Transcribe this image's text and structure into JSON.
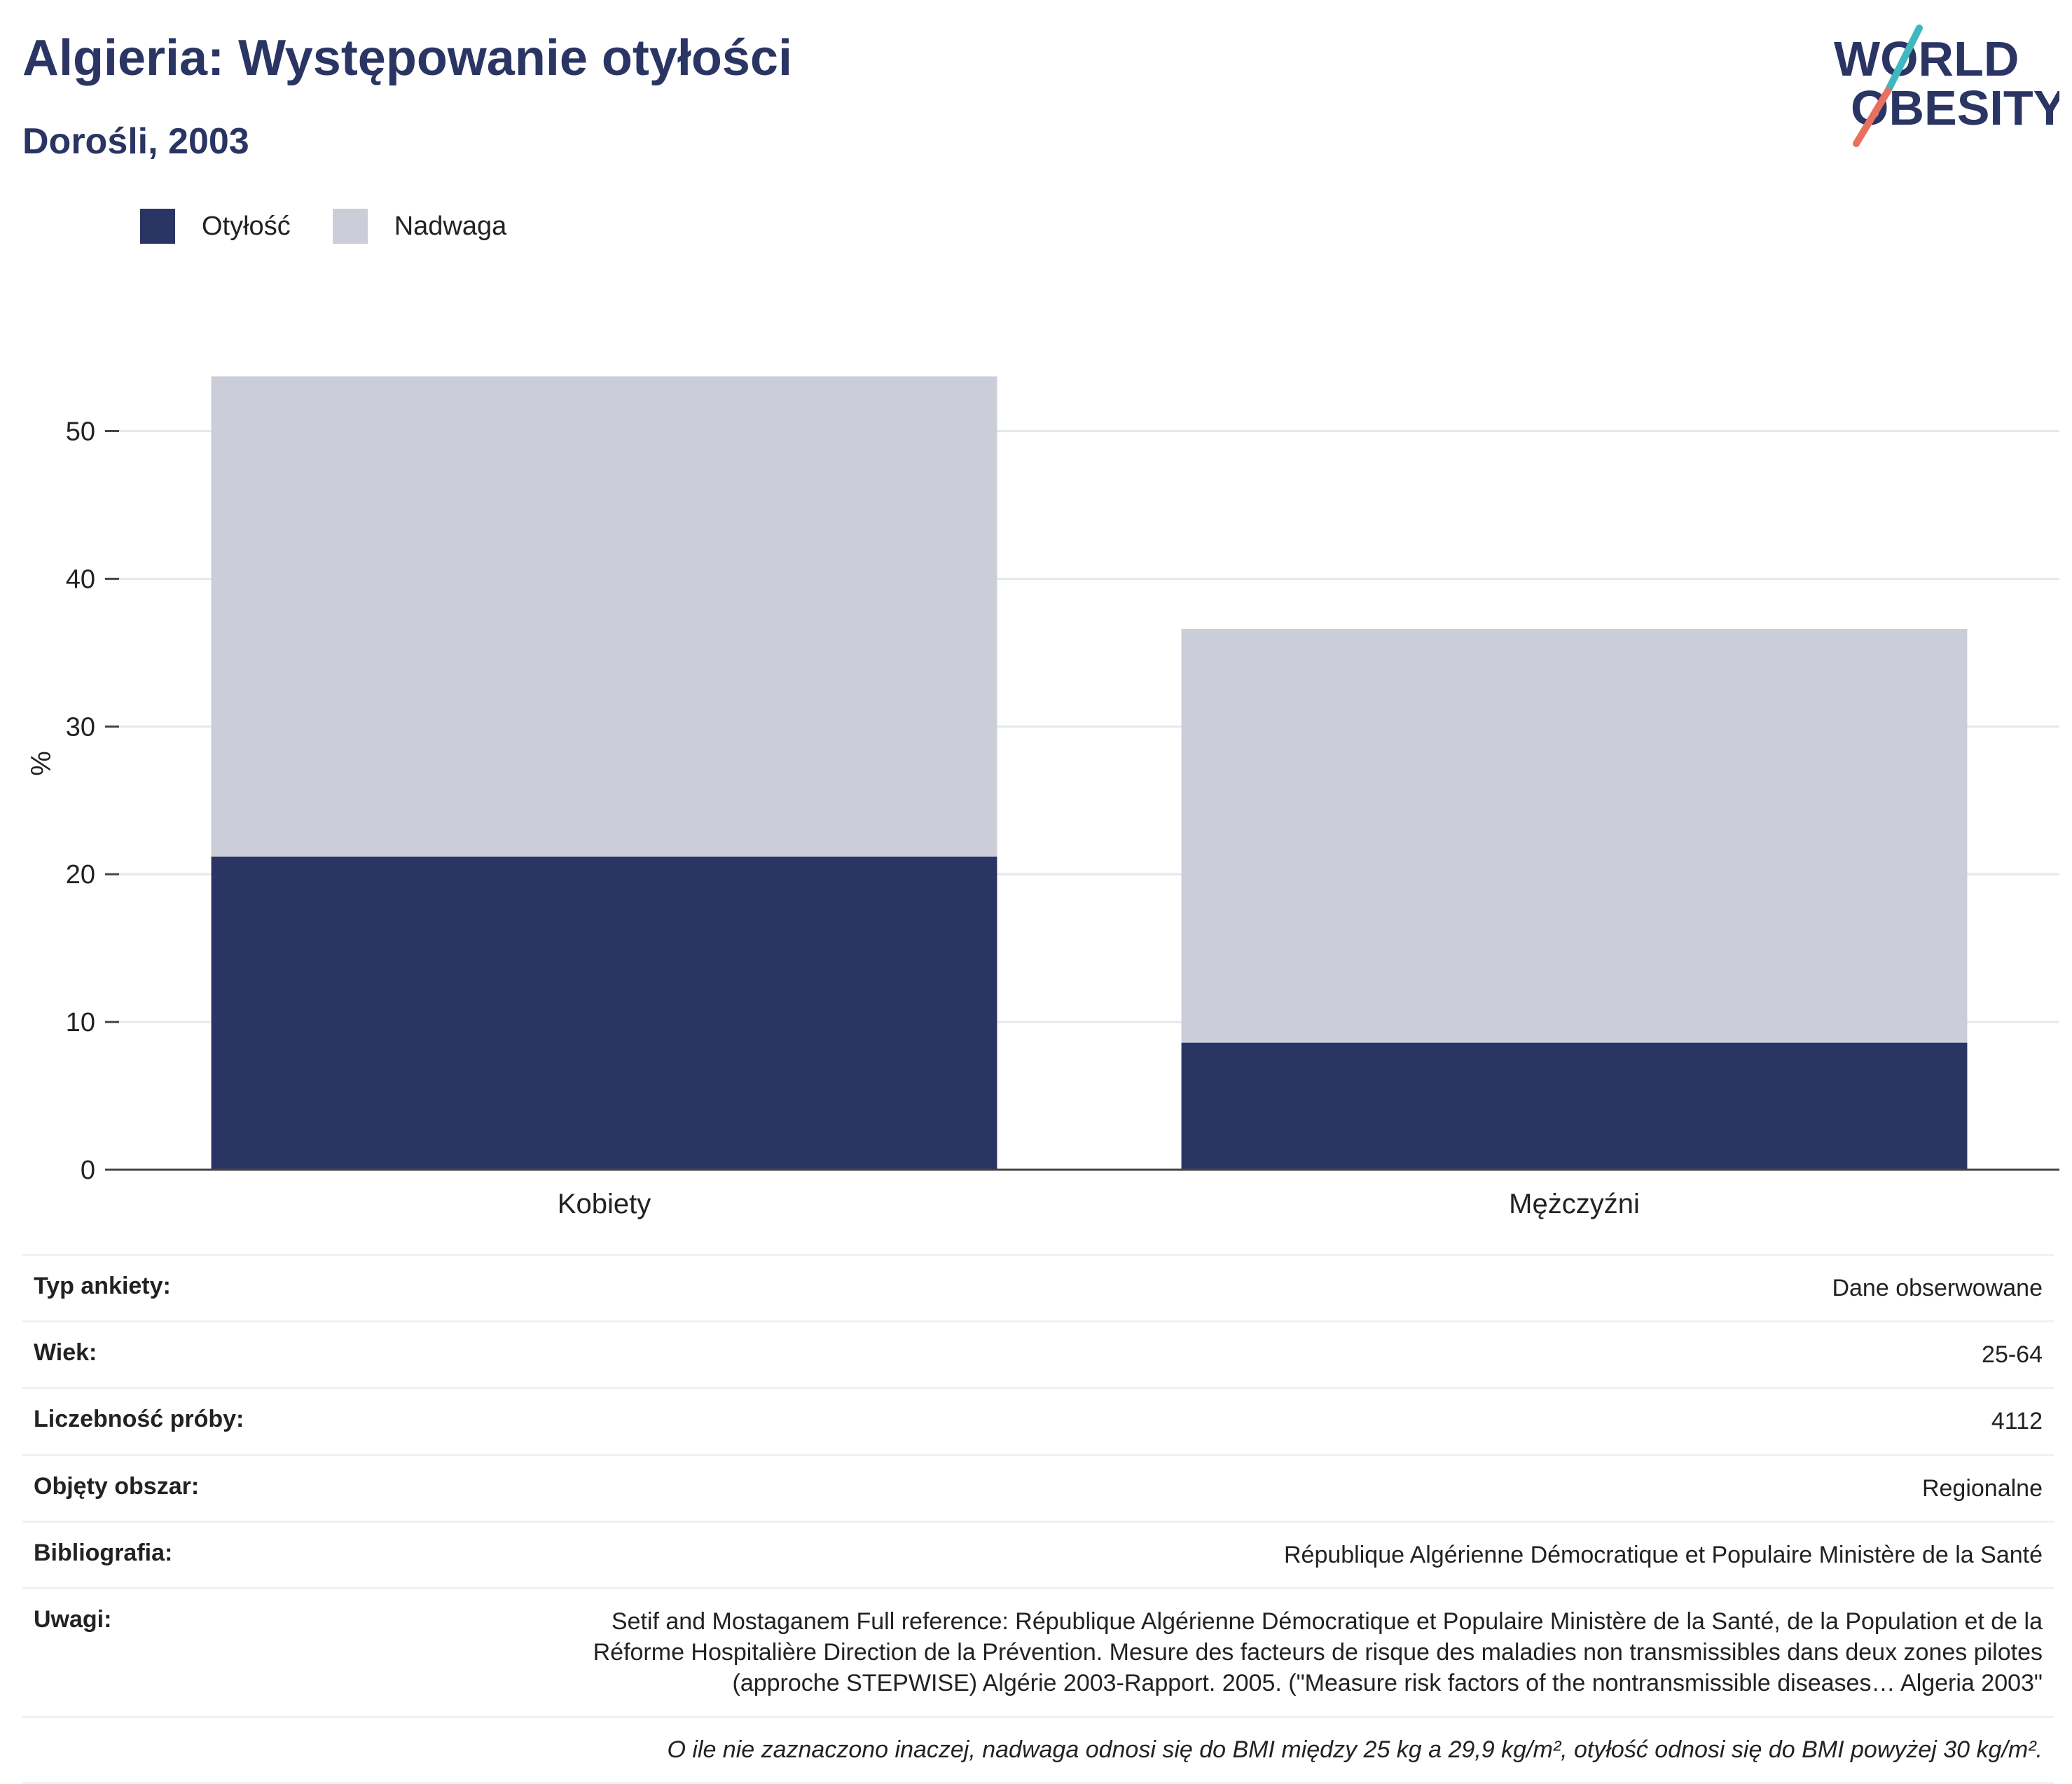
{
  "header": {
    "title": "Algieria: Występowanie otyłości",
    "subtitle": "Dorośli, 2003"
  },
  "logo": {
    "line1": "WORLD",
    "line2": "OBESITY",
    "colors": {
      "text": "#2a3563",
      "slash_top": "#3fb8c0",
      "slash_bottom": "#e8705f"
    }
  },
  "legend": [
    {
      "label": "Otyłość",
      "color": "#2a3563"
    },
    {
      "label": "Nadwaga",
      "color": "#cbcdd8"
    }
  ],
  "chart_data": {
    "type": "bar",
    "stacked": true,
    "categories": [
      "Kobiety",
      "Mężczyźni"
    ],
    "series": [
      {
        "name": "Otyłość",
        "values": [
          21.2,
          8.6
        ],
        "color": "#2a3563"
      },
      {
        "name": "Nadwaga",
        "values": [
          32.5,
          28.0
        ],
        "color": "#cbcdd8"
      }
    ],
    "ylabel": "%",
    "ylim": [
      0,
      55
    ],
    "yticks": [
      0,
      10,
      20,
      30,
      40,
      50
    ],
    "grid": true
  },
  "info": [
    {
      "key": "Typ ankiety:",
      "value": "Dane obserwowane"
    },
    {
      "key": "Wiek:",
      "value": "25-64"
    },
    {
      "key": "Liczebność próby:",
      "value": "4112"
    },
    {
      "key": "Objęty obszar:",
      "value": "Regionalne"
    },
    {
      "key": "Bibliografia:",
      "value": "République Algérienne Démocratique et Populaire Ministère de la Santé"
    },
    {
      "key": "Uwagi:",
      "value": "Setif and Mostaganem Full reference: République Algérienne Démocratique et Populaire Ministère de la Santé, de la Population et de la Réforme Hospitalière Direction de la Prévention. Mesure des facteurs de risque des maladies non transmissibles dans deux zones pilotes (approche STEPWISE) Algérie 2003-Rapport. 2005. (\"Measure risk factors of the nontransmissible diseases… Algeria 2003\""
    }
  ],
  "footnote": "O ile nie zaznaczono inaczej, nadwaga odnosi się do BMI między 25 kg a 29,9 kg/m², otyłość odnosi się do BMI powyżej 30 kg/m²."
}
